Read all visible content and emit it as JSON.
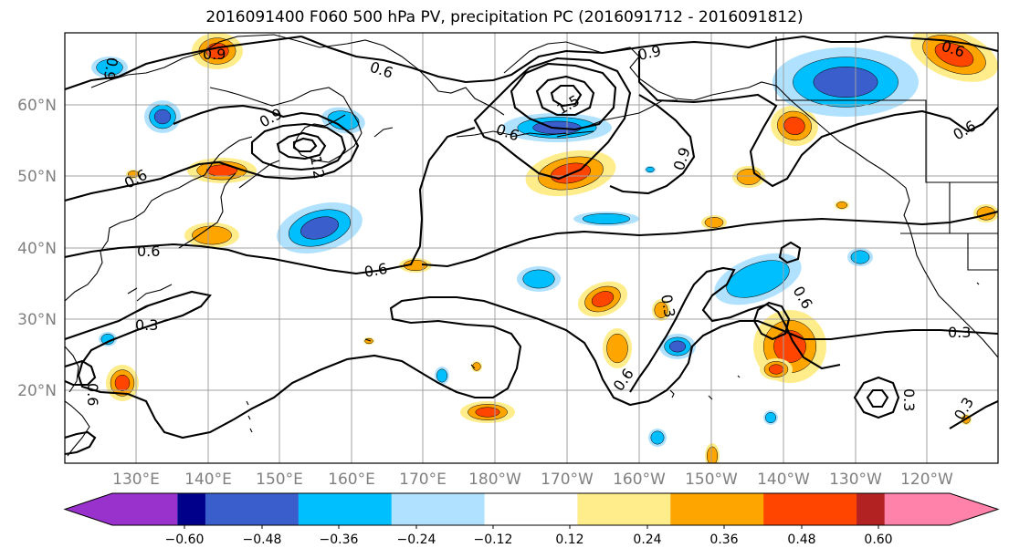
{
  "title": "2016091400 F060 500 hPa PV, precipitation PC (2016091712 - 2016091812)",
  "map": {
    "lat_ticks": [
      "60°N",
      "50°N",
      "40°N",
      "30°N",
      "20°N"
    ],
    "lon_ticks": [
      "130°E",
      "140°E",
      "150°E",
      "160°E",
      "170°E",
      "180°W",
      "170°W",
      "160°W",
      "150°W",
      "140°W",
      "130°W",
      "120°W"
    ],
    "pv_contour_labels": [
      "0.9",
      "0.6",
      "0.9",
      "0.6",
      "0.6",
      "0.9",
      "1.5",
      "0.6",
      "0.9",
      "0.6",
      "0.6",
      "0.6",
      "0.3",
      "0.3",
      "0.6",
      "0.3",
      "0.6",
      "0.6",
      "0.3",
      "0.3",
      "0.9",
      "1.2"
    ]
  },
  "colorbar": {
    "tick_labels": [
      "−0.60",
      "−0.48",
      "−0.36",
      "−0.24",
      "−0.12",
      "0.12",
      "0.24",
      "0.36",
      "0.48",
      "0.60"
    ],
    "colors": [
      "#9932cc",
      "#00008b",
      "#3a5fcd",
      "#00bfff",
      "#b0e2ff",
      "#ffffff",
      "#ffec8b",
      "#ffa500",
      "#ff4500",
      "#b22222",
      "#ff82ab"
    ]
  },
  "colors": {
    "neg_strong": "#3a5fcd",
    "neg_mid": "#00bfff",
    "neg_weak": "#b0e2ff",
    "pos_weak": "#ffec8b",
    "pos_mid": "#ffa500",
    "pos_strong": "#ff4500"
  }
}
